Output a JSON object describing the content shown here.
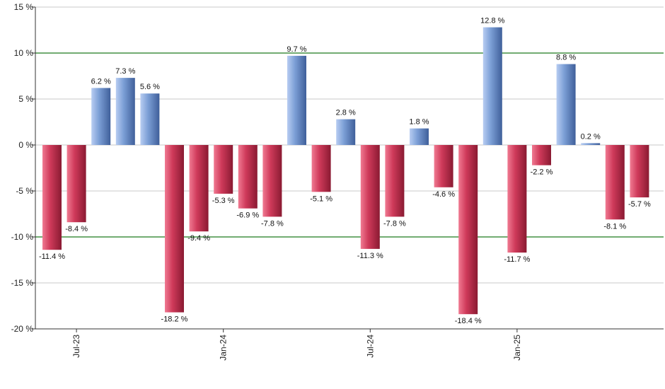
{
  "chart_data": {
    "type": "bar",
    "title": "",
    "xlabel": "",
    "ylabel": "",
    "ylim": [
      -20,
      15
    ],
    "y_ticks": [
      15,
      10,
      5,
      0,
      -5,
      -10,
      -15,
      -20
    ],
    "y_tick_labels": [
      "15 %",
      "10 %",
      "5 %",
      "0 %",
      "-5 %",
      "-10 %",
      "-15 %",
      "-20 %"
    ],
    "y_unit": "%",
    "highlight_lines": [
      10,
      -10
    ],
    "grid": true,
    "legend": "none",
    "x_tick_labels": [
      {
        "label": "Jul-23",
        "bar_index": 1
      },
      {
        "label": "Jan-24",
        "bar_index": 7
      },
      {
        "label": "Jul-24",
        "bar_index": 13
      },
      {
        "label": "Jan-25",
        "bar_index": 19
      }
    ],
    "values": [
      -11.4,
      -8.4,
      6.2,
      7.3,
      5.6,
      -18.2,
      -9.4,
      -5.3,
      -6.9,
      -7.8,
      9.7,
      -5.1,
      2.8,
      -11.3,
      -7.8,
      1.8,
      -4.6,
      -18.4,
      12.8,
      -11.7,
      -2.2,
      8.8,
      0.2,
      -8.1,
      -5.7
    ],
    "data_labels": [
      "-11.4 %",
      "-8.4 %",
      "6.2 %",
      "7.3 %",
      "5.6 %",
      "-18.2 %",
      "-9.4 %",
      "-5.3 %",
      "-6.9 %",
      "-7.8 %",
      "9.7 %",
      "-5.1 %",
      "2.8 %",
      "-11.3 %",
      "-7.8 %",
      "1.8 %",
      "-4.6 %",
      "-18.4 %",
      "12.8 %",
      "-11.7 %",
      "-2.2 %",
      "8.8 %",
      "0.2 %",
      "-8.1 %",
      "-5.7 %"
    ],
    "colors": {
      "positive": "#7c9fd6",
      "positive_light": "#b8cdf2",
      "positive_dark": "#3f5f9a",
      "negative": "#cf3a5a",
      "negative_light": "#f07a92",
      "negative_dark": "#8a1a32",
      "grid": "#c8c8c8",
      "highlight": "#1f7a1f",
      "axis": "#333333"
    }
  }
}
